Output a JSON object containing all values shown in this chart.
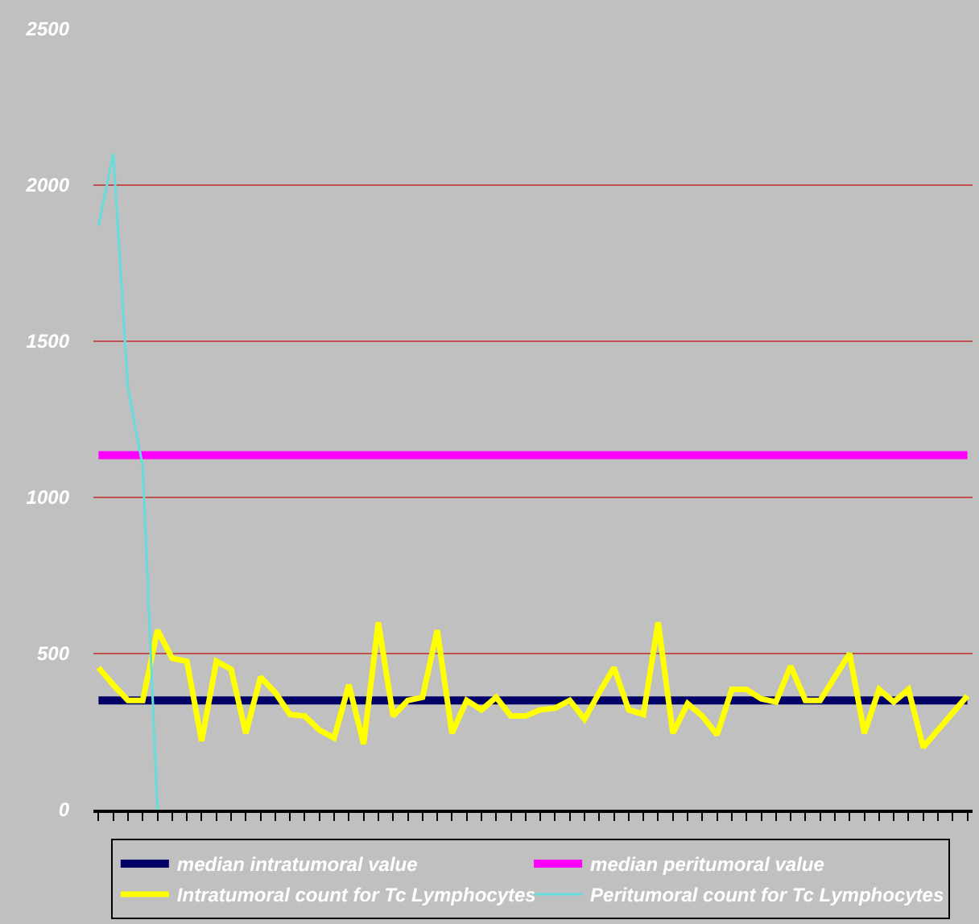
{
  "chart_data": {
    "type": "line",
    "categories": [
      null,
      null,
      null,
      null,
      null,
      null,
      null,
      null,
      null,
      null,
      null,
      null,
      null,
      null,
      null,
      null,
      null,
      null,
      null,
      null,
      null,
      null,
      null,
      null,
      null,
      null,
      null,
      null,
      null,
      null,
      null,
      null,
      null,
      null,
      null,
      null,
      null,
      null,
      null,
      null,
      null,
      null,
      null,
      null,
      null,
      null,
      null,
      null,
      null,
      null,
      null,
      null,
      null,
      null,
      null,
      null,
      null,
      null,
      null,
      null
    ],
    "series": [
      {
        "name": "median intratumoral value",
        "color": "#000066",
        "values": [
          350,
          350,
          350,
          350,
          350,
          350,
          350,
          350,
          350,
          350,
          350,
          350,
          350,
          350,
          350,
          350,
          350,
          350,
          350,
          350,
          350,
          350,
          350,
          350,
          350,
          350,
          350,
          350,
          350,
          350,
          350,
          350,
          350,
          350,
          350,
          350,
          350,
          350,
          350,
          350,
          350,
          350,
          350,
          350,
          350,
          350,
          350,
          350,
          350,
          350,
          350,
          350,
          350,
          350,
          350,
          350,
          350,
          350,
          350,
          350
        ]
      },
      {
        "name": "median peritumoral value",
        "color": "#ff00ff",
        "values": [
          1135,
          1135,
          1135,
          1135,
          1135,
          1135,
          1135,
          1135,
          1135,
          1135,
          1135,
          1135,
          1135,
          1135,
          1135,
          1135,
          1135,
          1135,
          1135,
          1135,
          1135,
          1135,
          1135,
          1135,
          1135,
          1135,
          1135,
          1135,
          1135,
          1135,
          1135,
          1135,
          1135,
          1135,
          1135,
          1135,
          1135,
          1135,
          1135,
          1135,
          1135,
          1135,
          1135,
          1135,
          1135,
          1135,
          1135,
          1135,
          1135,
          1135,
          1135,
          1135,
          1135,
          1135,
          1135,
          1135,
          1135,
          1135,
          1135,
          1135
        ]
      },
      {
        "name": "Intratumoral count for Tc Lymphocytes",
        "color": "#ffff00",
        "values": [
          455,
          400,
          350,
          350,
          575,
          485,
          475,
          220,
          475,
          450,
          245,
          425,
          375,
          305,
          300,
          255,
          230,
          400,
          210,
          600,
          300,
          350,
          360,
          575,
          245,
          350,
          320,
          360,
          300,
          300,
          320,
          325,
          350,
          290,
          375,
          455,
          320,
          305,
          600,
          245,
          340,
          300,
          240,
          385,
          385,
          355,
          345,
          460,
          350,
          350,
          425,
          500,
          245,
          385,
          345,
          385,
          200,
          255,
          310,
          365
        ]
      },
      {
        "name": "Peritumoral count for Tc Lymphocytes",
        "color": "#66dddd",
        "values": [
          1870,
          2100,
          1350,
          1100,
          0,
          null,
          null,
          null,
          null,
          null,
          null,
          null,
          null,
          null,
          null,
          null,
          null,
          null,
          null,
          null,
          null,
          null,
          null,
          null,
          null,
          null,
          null,
          null,
          null,
          null,
          null,
          null,
          null,
          null,
          null,
          null,
          null,
          null,
          null,
          null,
          null,
          null,
          null,
          null,
          null,
          null,
          null,
          null,
          null,
          null,
          null,
          null,
          null,
          null,
          null,
          null,
          null,
          null,
          null,
          null
        ]
      }
    ],
    "ylim": [
      0,
      2500
    ],
    "yticks": [
      0,
      500,
      1000,
      1500,
      2000,
      2500
    ],
    "grid": "y",
    "legend": "bottom",
    "tick_labels": "y",
    "marker": "none"
  }
}
